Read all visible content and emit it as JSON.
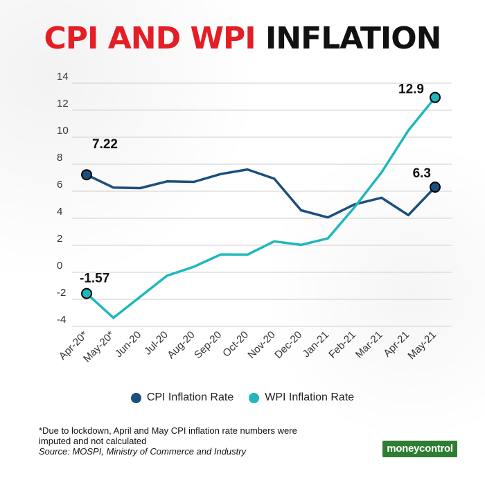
{
  "title": {
    "part1": "CPI AND WPI",
    "part2": "INFLATION"
  },
  "chart_data": {
    "type": "line",
    "title": "CPI AND WPI INFLATION",
    "categories": [
      "Apr-20*",
      "May-20*",
      "Jun-20",
      "Jul-20",
      "Aug-20",
      "Sep-20",
      "Oct-20",
      "Nov-20",
      "Dec-20",
      "Jan-21",
      "Feb-21",
      "Mar-21",
      "Apr-21",
      "May-21"
    ],
    "ylim": [
      -4,
      14
    ],
    "yticks": [
      "14",
      "12",
      "10",
      "8",
      "6",
      "4",
      "2",
      "0",
      "-2",
      "-4"
    ],
    "ytick_values": [
      14,
      12,
      10,
      8,
      6,
      4,
      2,
      0,
      -2,
      -4
    ],
    "grid": true,
    "series": [
      {
        "name": "CPI Inflation Rate",
        "color": "#1b4f7d",
        "values": [
          7.22,
          6.27,
          6.23,
          6.73,
          6.69,
          7.27,
          7.61,
          6.93,
          4.59,
          4.06,
          5.03,
          5.52,
          4.23,
          6.3
        ]
      },
      {
        "name": "WPI Inflation Rate",
        "color": "#1fb7bd",
        "values": [
          -1.57,
          -3.37,
          -1.81,
          -0.25,
          0.41,
          1.32,
          1.31,
          2.29,
          2.03,
          2.51,
          4.83,
          7.39,
          10.49,
          12.94
        ]
      }
    ],
    "annotations": [
      {
        "series": 0,
        "index": 0,
        "label": "7.22"
      },
      {
        "series": 0,
        "index": 13,
        "label": "6.3"
      },
      {
        "series": 1,
        "index": 0,
        "label": "-1.57"
      },
      {
        "series": 1,
        "index": 13,
        "label": "12.9"
      }
    ]
  },
  "legend": [
    {
      "label": "CPI Inflation Rate",
      "color": "#1b4f7d"
    },
    {
      "label": "WPI Inflation Rate",
      "color": "#1fb7bd"
    }
  ],
  "footnote": {
    "note": "*Due to lockdown, April and May CPI inflation rate numbers were imputed and not calculated",
    "source": "Source: MOSPI, Ministry of Commerce and Industry"
  },
  "logo": {
    "text": "moneycontrol"
  }
}
